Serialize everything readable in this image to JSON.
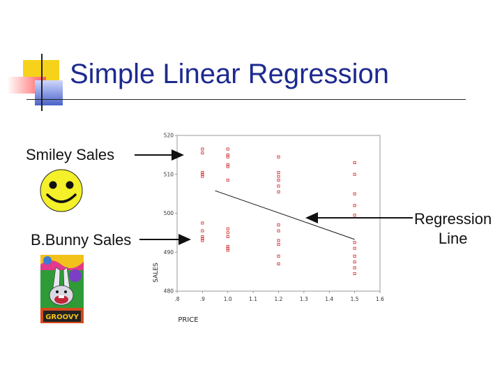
{
  "slide": {
    "title": "Simple Linear Regression",
    "smiley_label": "Smiley Sales",
    "bunny_label": "B.Bunny Sales",
    "regression_label_line1": "Regression",
    "regression_label_line2": "Line",
    "bunny_card_text": "GROOVY",
    "colors": {
      "title": "#1d2a8f",
      "accent_yellow": "#f7d21a",
      "accent_red": "#ff5b5b",
      "accent_blue": "#4a63c8",
      "smiley_face": "#f4f02a",
      "marker": "#cc2222"
    }
  },
  "chart_data": {
    "type": "scatter",
    "xlabel": "PRICE",
    "ylabel": "SALES",
    "xlim": [
      0.8,
      1.6
    ],
    "ylim": [
      480,
      520
    ],
    "x_ticks": [
      ".8",
      ".9",
      "1.0",
      "1.1",
      "1.2",
      "1.3",
      "1.4",
      "1.5",
      "1.6"
    ],
    "y_ticks": [
      "480",
      "490",
      "500",
      "510",
      "520"
    ],
    "grid": false,
    "points": [
      [
        0.9,
        516.5
      ],
      [
        0.9,
        515.5
      ],
      [
        0.9,
        510.5
      ],
      [
        0.9,
        510
      ],
      [
        0.9,
        509.5
      ],
      [
        0.9,
        497.5
      ],
      [
        0.9,
        495.5
      ],
      [
        0.9,
        494
      ],
      [
        0.9,
        493.5
      ],
      [
        0.9,
        493
      ],
      [
        1.0,
        516.5
      ],
      [
        1.0,
        515
      ],
      [
        1.0,
        514.5
      ],
      [
        1.0,
        512.5
      ],
      [
        1.0,
        512
      ],
      [
        1.0,
        508.5
      ],
      [
        1.0,
        496
      ],
      [
        1.0,
        495
      ],
      [
        1.0,
        494
      ],
      [
        1.0,
        491.5
      ],
      [
        1.0,
        491
      ],
      [
        1.0,
        490.5
      ],
      [
        1.2,
        514.5
      ],
      [
        1.2,
        510.5
      ],
      [
        1.2,
        509.5
      ],
      [
        1.2,
        508.5
      ],
      [
        1.2,
        507
      ],
      [
        1.2,
        505.5
      ],
      [
        1.2,
        497
      ],
      [
        1.2,
        495.5
      ],
      [
        1.2,
        493
      ],
      [
        1.2,
        492
      ],
      [
        1.2,
        489
      ],
      [
        1.2,
        487
      ],
      [
        1.5,
        513
      ],
      [
        1.5,
        510
      ],
      [
        1.5,
        505
      ],
      [
        1.5,
        502
      ],
      [
        1.5,
        499.5
      ],
      [
        1.5,
        492.5
      ],
      [
        1.5,
        491
      ],
      [
        1.5,
        489
      ],
      [
        1.5,
        487.5
      ],
      [
        1.5,
        486
      ],
      [
        1.5,
        484.5
      ]
    ],
    "regression_line": {
      "x": [
        0.95,
        1.5
      ],
      "y": [
        505.8,
        493.3
      ]
    }
  }
}
